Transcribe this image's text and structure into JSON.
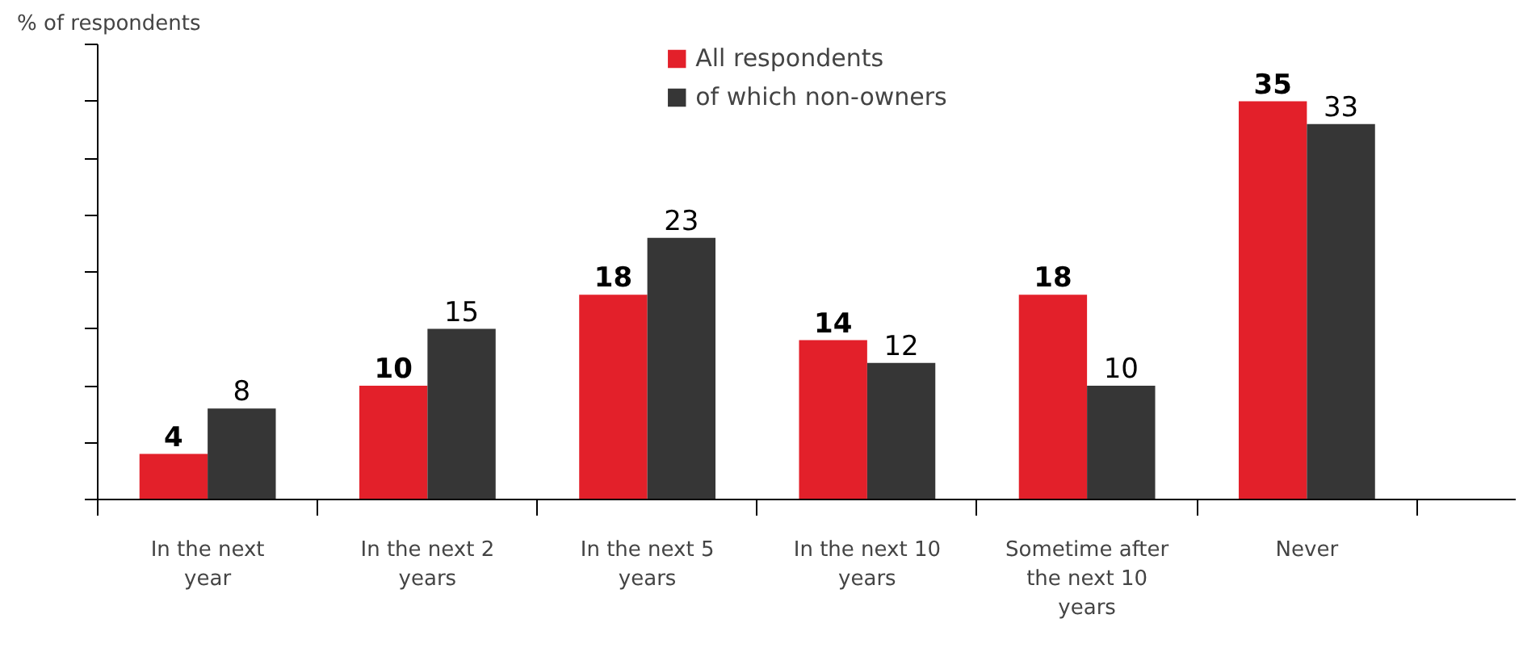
{
  "chart_data": {
    "type": "bar",
    "ylabel": "% of respondents",
    "categories": [
      "In the next year",
      "In the next 2 years",
      "In the next 5 years",
      "In the next 10 years",
      "Sometime after the next 10 years",
      "Never"
    ],
    "series": [
      {
        "name": "All respondents",
        "color": "#e3202a",
        "values": [
          4,
          10,
          18,
          14,
          18,
          35
        ]
      },
      {
        "name": "of which non-owners",
        "color": "#363636",
        "values": [
          8,
          15,
          23,
          12,
          10,
          33
        ]
      }
    ],
    "ylim": [
      0,
      40
    ],
    "yticks": [
      {
        "value": 0,
        "label": null
      },
      {
        "value": 5,
        "label": null
      },
      {
        "value": 10,
        "label": null
      },
      {
        "value": 15,
        "label": null
      },
      {
        "value": 20,
        "label": null
      },
      {
        "value": 25,
        "label": null
      },
      {
        "value": 30,
        "label": null
      },
      {
        "value": 35,
        "label": null
      },
      {
        "value": 40,
        "label": null
      }
    ],
    "data_labels": true,
    "grid": false,
    "legend": "top"
  }
}
